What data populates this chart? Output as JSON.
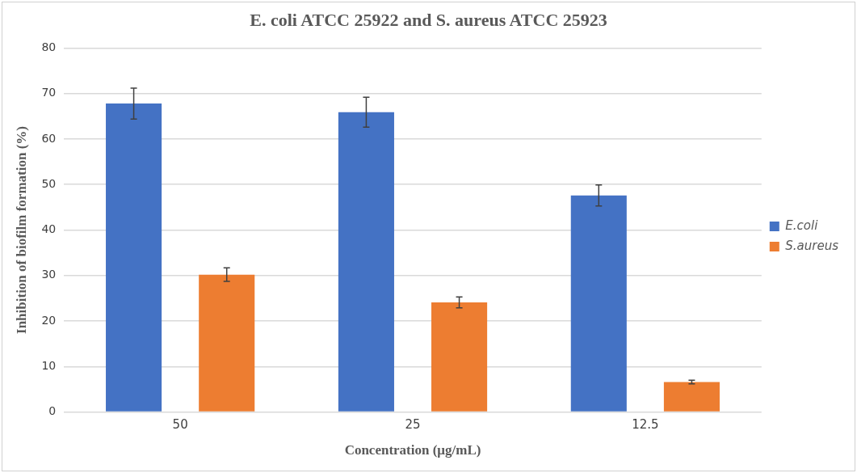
{
  "chart_data": {
    "type": "bar",
    "title": "E. coli ATCC 25922 and S. aureus ATCC 25923",
    "xlabel": "Concentration (μg/mL)",
    "ylabel": "Inhibition of biofilm formation (%)",
    "categories": [
      "50",
      "25",
      "12.5"
    ],
    "series": [
      {
        "name": "E.coli",
        "color": "#4472c4",
        "values": [
          67.8,
          65.9,
          47.6
        ],
        "errors": [
          3.4,
          3.3,
          2.3
        ]
      },
      {
        "name": "S.aureus",
        "color": "#ed7d31",
        "values": [
          30.2,
          24.1,
          6.6
        ],
        "errors": [
          1.5,
          1.2,
          0.4
        ]
      }
    ],
    "ylim": [
      0,
      80
    ],
    "yticks": [
      0,
      10,
      20,
      30,
      40,
      50,
      60,
      70,
      80
    ],
    "grid": "y",
    "legend": "right"
  }
}
